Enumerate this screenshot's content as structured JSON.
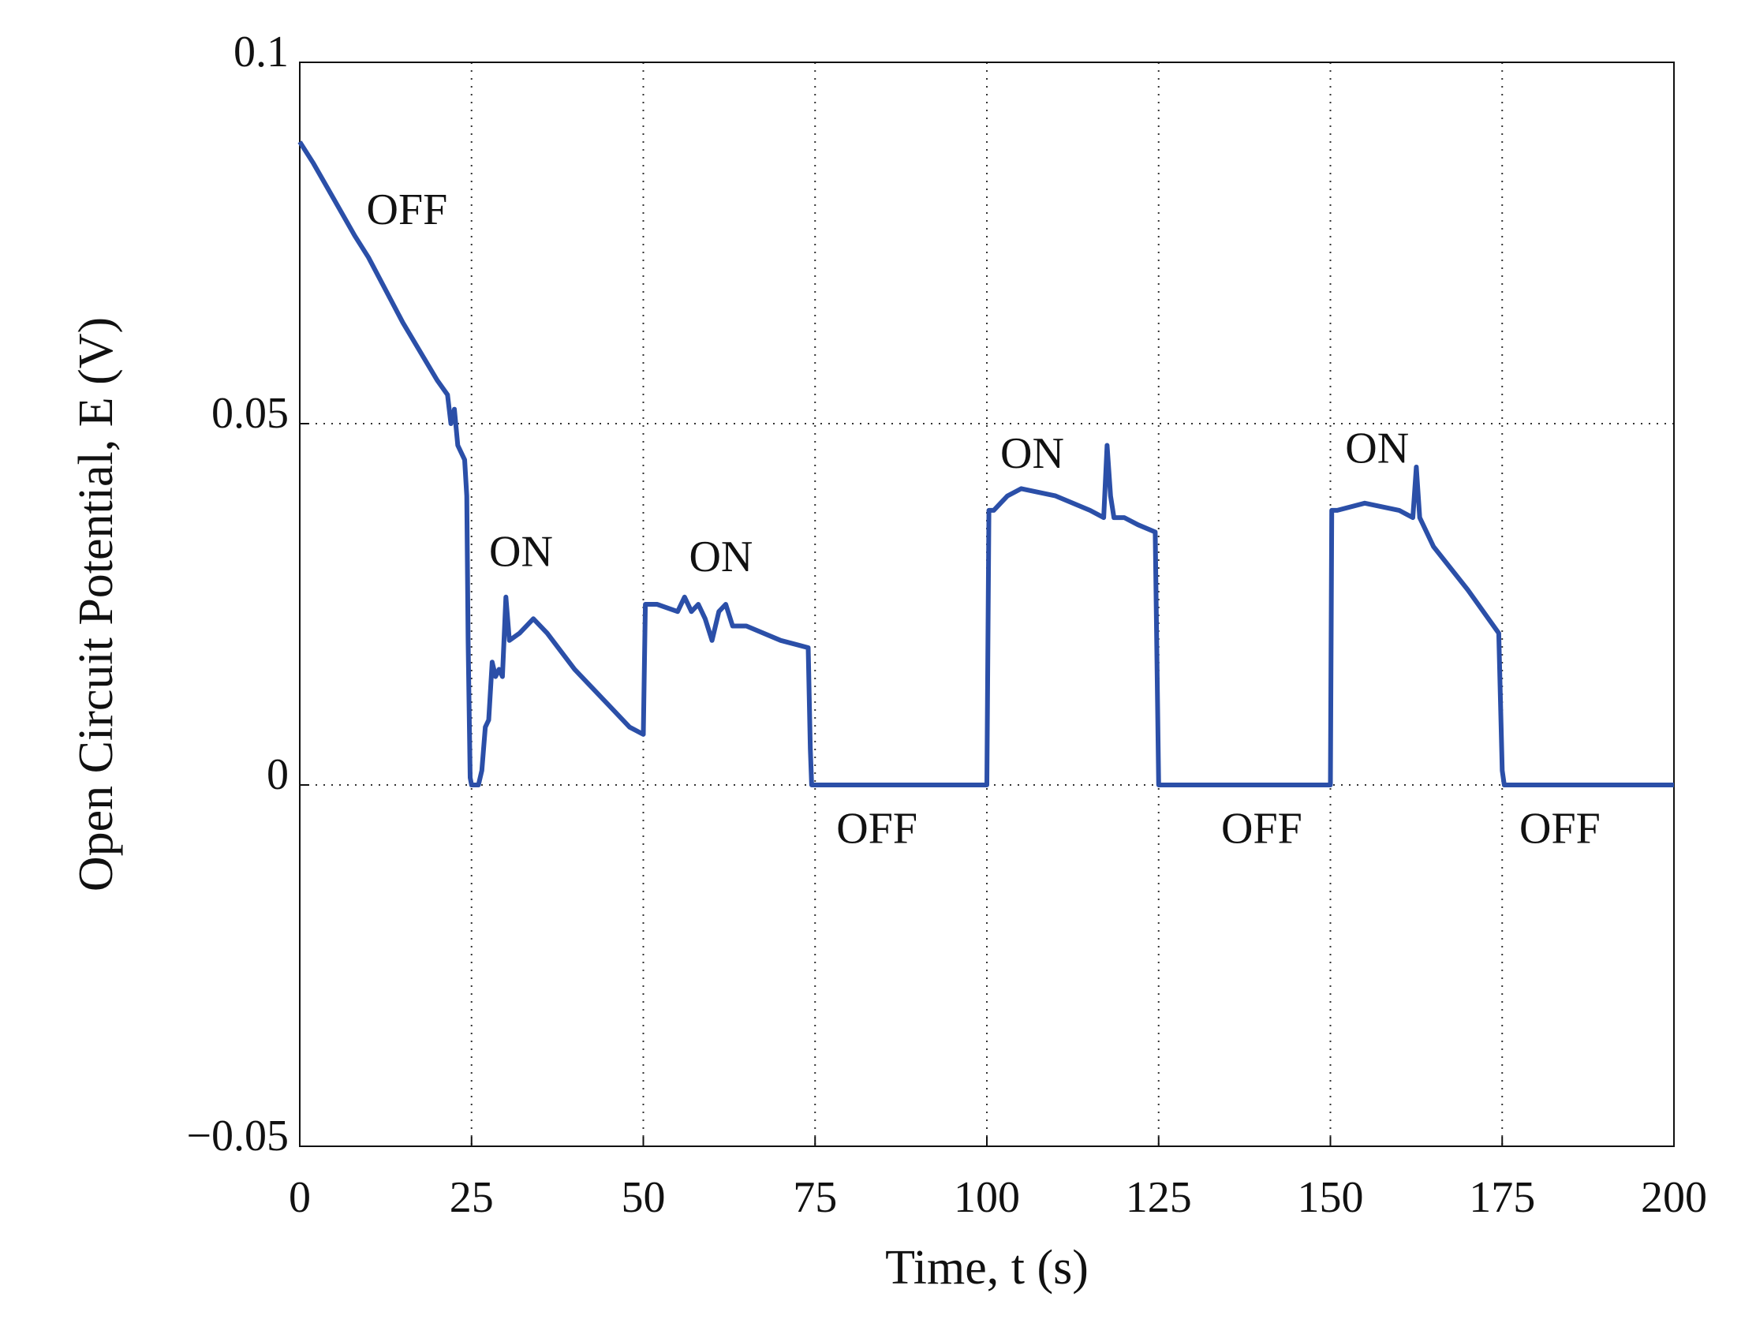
{
  "chart_data": {
    "type": "line",
    "x_label": "Time, t (s)",
    "y_label": "Open Circuit Potential, E (V)",
    "xlim": [
      0,
      200
    ],
    "ylim": [
      -0.05,
      0.1
    ],
    "xticks": [
      0,
      25,
      50,
      75,
      100,
      125,
      150,
      175,
      200
    ],
    "yticks": [
      {
        "value": -0.05,
        "label": "−0.05"
      },
      0,
      0.05,
      0.1
    ],
    "grid": true,
    "series": [
      {
        "color": "#2b4fa8",
        "x": [
          0,
          2,
          5,
          8,
          10,
          15,
          20,
          21.5,
          22,
          22.5,
          23,
          24,
          24.3,
          24.5,
          24.8,
          25,
          26,
          26.5,
          27,
          27.5,
          28,
          28.5,
          29,
          29.5,
          30,
          30.5,
          32,
          34,
          36,
          40,
          45,
          48,
          50,
          50.3,
          52,
          55,
          56,
          57,
          58,
          59,
          60,
          61,
          62,
          63,
          65,
          70,
          74,
          74.3,
          74.5,
          100,
          100.3,
          101,
          103,
          105,
          110,
          115,
          117,
          117.5,
          118,
          118.5,
          120,
          122,
          124.5,
          125,
          150,
          150.2,
          151,
          155,
          160,
          162,
          162.5,
          163,
          165,
          170,
          174.5,
          175,
          175.3,
          200
        ],
        "values": [
          0.089,
          0.086,
          0.081,
          0.076,
          0.073,
          0.064,
          0.056,
          0.054,
          0.05,
          0.052,
          0.047,
          0.045,
          0.04,
          0.02,
          0.001,
          0,
          0,
          0.002,
          0.008,
          0.009,
          0.017,
          0.015,
          0.016,
          0.015,
          0.026,
          0.02,
          0.021,
          0.023,
          0.021,
          0.016,
          0.011,
          0.008,
          0.007,
          0.025,
          0.025,
          0.024,
          0.026,
          0.024,
          0.025,
          0.023,
          0.02,
          0.024,
          0.025,
          0.022,
          0.022,
          0.02,
          0.019,
          0.005,
          0,
          0,
          0.038,
          0.038,
          0.04,
          0.041,
          0.04,
          0.038,
          0.037,
          0.047,
          0.04,
          0.037,
          0.037,
          0.036,
          0.035,
          0,
          0,
          0.038,
          0.038,
          0.039,
          0.038,
          0.037,
          0.044,
          0.037,
          0.033,
          0.027,
          0.021,
          0.002,
          0,
          0
        ]
      }
    ],
    "annotations": [
      {
        "text": "OFF",
        "x": 15.6,
        "y": 0.079
      },
      {
        "text": "ON",
        "x": 32.2,
        "y": 0.0317
      },
      {
        "text": "ON",
        "x": 61.3,
        "y": 0.031
      },
      {
        "text": "OFF",
        "x": 84,
        "y": -0.0066
      },
      {
        "text": "ON",
        "x": 106.6,
        "y": 0.0453
      },
      {
        "text": "OFF",
        "x": 140,
        "y": -0.0066
      },
      {
        "text": "ON",
        "x": 156.8,
        "y": 0.046
      },
      {
        "text": "OFF",
        "x": 183.4,
        "y": -0.0066
      }
    ]
  }
}
